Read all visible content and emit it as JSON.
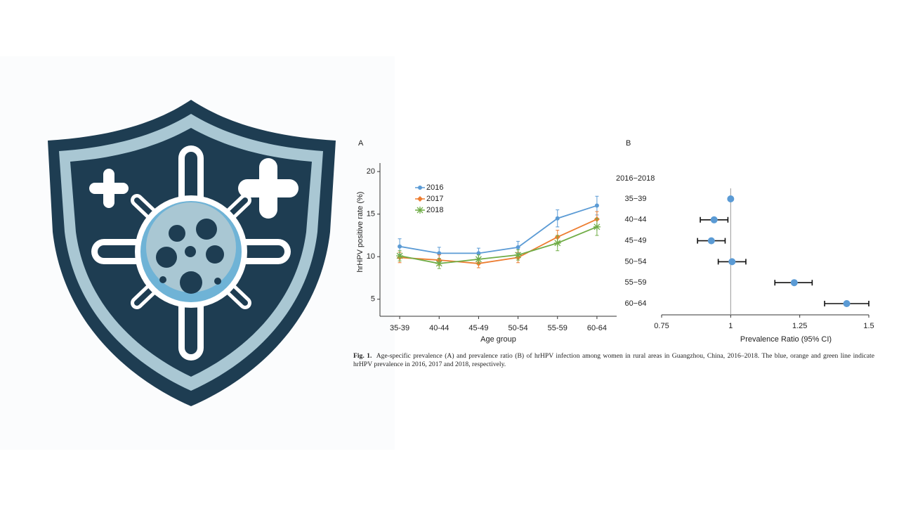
{
  "chart_data": [
    {
      "type": "line",
      "panel": "A",
      "xlabel": "Age group",
      "ylabel": "hrHPV positive rate (%)",
      "categories": [
        "35-39",
        "40-44",
        "45-49",
        "50-54",
        "55-59",
        "60-64"
      ],
      "ylim": [
        3,
        21
      ],
      "yticks": [
        5,
        10,
        15,
        20
      ],
      "series": [
        {
          "name": "2016",
          "color": "#5b9bd5",
          "marker": "circle",
          "values": [
            11.2,
            10.4,
            10.4,
            11.1,
            14.5,
            16.0
          ],
          "errors": [
            0.9,
            0.7,
            0.6,
            0.7,
            1.0,
            1.1
          ]
        },
        {
          "name": "2017",
          "color": "#ed7d31",
          "marker": "diamond",
          "values": [
            9.9,
            9.6,
            9.2,
            9.9,
            12.3,
            14.4
          ],
          "errors": [
            0.6,
            0.6,
            0.5,
            0.6,
            0.8,
            0.9
          ]
        },
        {
          "name": "2018",
          "color": "#70ad47",
          "marker": "star",
          "values": [
            10.1,
            9.2,
            9.7,
            10.2,
            11.6,
            13.5
          ],
          "errors": [
            0.6,
            0.6,
            0.5,
            0.6,
            0.9,
            1.0
          ]
        }
      ]
    },
    {
      "type": "forest",
      "panel": "B",
      "subtitle": "2016−2018",
      "xlabel": "Prevalence Ratio (95% CI)",
      "categories": [
        "35−39",
        "40−44",
        "45−49",
        "50−54",
        "55−59",
        "60−64"
      ],
      "values": [
        1.0,
        0.94,
        0.93,
        1.005,
        1.23,
        1.42
      ],
      "lower": [
        null,
        0.89,
        0.88,
        0.955,
        1.16,
        1.34
      ],
      "upper": [
        null,
        0.99,
        0.98,
        1.055,
        1.295,
        1.5
      ],
      "reference": 1,
      "color": "#5b9bd5",
      "xlim": [
        0.75,
        1.5
      ],
      "xticks": [
        0.75,
        1,
        1.25,
        1.5
      ]
    }
  ],
  "caption": {
    "label": "Fig. 1.",
    "text": "Age-specific prevalence (A) and prevalence ratio (B) of hrHPV infection among women in rural areas in Guangzhou, China, 2016–2018. The blue, orange and green line indicate hrHPV prevalence in 2016, 2017 and 2018, respectively."
  }
}
